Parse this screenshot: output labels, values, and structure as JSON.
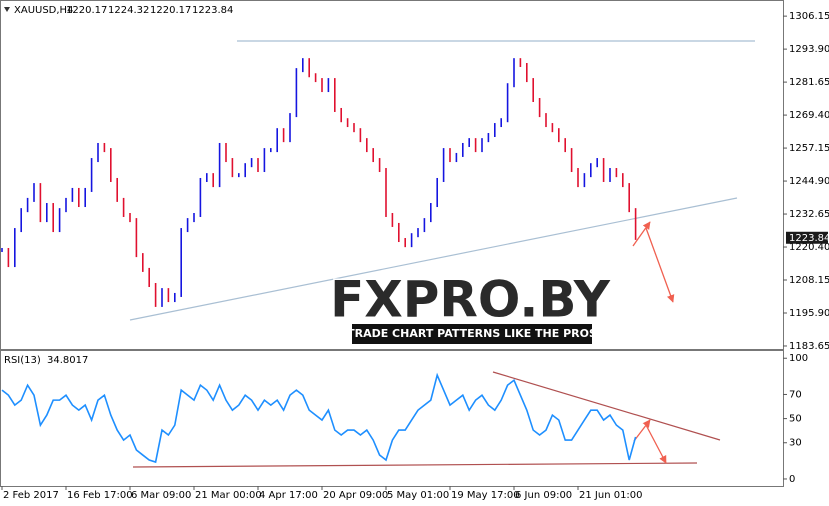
{
  "chart_data": [
    {
      "type": "line",
      "title": "XAUUSD,H4",
      "ohlc": [
        1220.17,
        1224.32,
        1220.17,
        1223.84
      ],
      "up_color": "#1515e0",
      "down_color": "#e0102f",
      "categories": [
        "2 Feb 2017",
        null,
        null,
        null,
        null,
        null,
        null,
        null,
        null,
        null,
        "16 Feb 17:00",
        null,
        null,
        null,
        null,
        null,
        null,
        null,
        null,
        null,
        "6 Mar 09:00",
        null,
        null,
        null,
        null,
        null,
        null,
        null,
        null,
        null,
        "21 Mar 00:00",
        null,
        null,
        null,
        null,
        null,
        null,
        null,
        null,
        null,
        "4 Apr 17:00",
        null,
        null,
        null,
        null,
        null,
        null,
        null,
        null,
        null,
        "20 Apr 09:00",
        null,
        null,
        null,
        null,
        null,
        null,
        null,
        null,
        null,
        "5 May 01:00",
        null,
        null,
        null,
        null,
        null,
        null,
        null,
        null,
        null,
        "19 May 17:00",
        null,
        null,
        null,
        null,
        null,
        null,
        null,
        null,
        null,
        "6 Jun 09:00",
        null,
        null,
        null,
        null,
        null,
        null,
        null,
        null,
        null,
        "21 Jun 01:00",
        null,
        null,
        null,
        null,
        null,
        null,
        null,
        null,
        null
      ],
      "values": [
        1219.3,
        1213.7,
        1226.7,
        1234.1,
        1237.9,
        1243.4,
        1230.4,
        1236,
        1226.7,
        1234.1,
        1237.9,
        1241.6,
        1236,
        1241.6,
        1252.7,
        1258.3,
        1256.4,
        1245.3,
        1237.9,
        1232.3,
        1230.4,
        1217.4,
        1211.9,
        1206.3,
        1198.9,
        1204.4,
        1200.7,
        1202.6,
        1226.7,
        1230.4,
        1232.3,
        1245.3,
        1247.1,
        1243.4,
        1258.3,
        1252.7,
        1247.1,
        1247.1,
        1250.8,
        1252.7,
        1249,
        1256.4,
        1256.4,
        1263.8,
        1260.1,
        1269.4,
        1286.1,
        1289.8,
        1284.2,
        1282.4,
        1278.7,
        1282.4,
        1271.3,
        1267.5,
        1265.7,
        1263.8,
        1260.1,
        1256.4,
        1252.7,
        1249,
        1232.3,
        1228.6,
        1223,
        1221.1,
        1224.8,
        1226.7,
        1230.4,
        1236,
        1245.3,
        1256.4,
        1252.7,
        1254.6,
        1258.3,
        1260.1,
        1256.4,
        1260.1,
        1262,
        1265.7,
        1267.5,
        1280.5,
        1289.8,
        1288,
        1282.4,
        1275,
        1269.4,
        1265.7,
        1263.8,
        1260.1,
        1256.4,
        1249,
        1243.4,
        1247.1,
        1250.8,
        1252.7,
        1245.3,
        1249,
        1247.1,
        1243.4,
        1234.1,
        1223.8
      ],
      "ylim": [
        1182.9,
        1311.4
      ],
      "yticks": [
        1306.15,
        {
          "value": 1293.9,
          "label": "1293.90"
        },
        1281.65,
        {
          "value": 1269.4,
          "label": "1269.40"
        },
        1257.15,
        {
          "value": 1244.9,
          "label": "1244.90"
        },
        1232.65,
        {
          "value": 1220.4,
          "label": "1220.40"
        },
        1208.15,
        {
          "value": 1195.9,
          "label": "1195.90"
        },
        1183.65
      ]
    },
    {
      "type": "line",
      "title": "RSI(13)",
      "last_value": 34.8017,
      "color": "#1e8fff",
      "values": [
        73.6,
        69.4,
        61.2,
        65.3,
        77.7,
        69.4,
        44.6,
        52.9,
        65.3,
        65.3,
        69.4,
        61.2,
        57,
        61.2,
        48.8,
        65.3,
        69.4,
        52.9,
        40.5,
        32.2,
        36.4,
        24,
        19.8,
        15.7,
        14,
        40.5,
        36.4,
        44.6,
        73.6,
        69.4,
        65.3,
        77.7,
        73.6,
        65.3,
        77.7,
        65.3,
        57,
        61.2,
        69.4,
        65.3,
        57,
        65.3,
        61.2,
        65.3,
        57,
        69.4,
        73.6,
        69.4,
        57,
        52.9,
        48.8,
        57,
        40.5,
        36.4,
        40.5,
        40.5,
        36.4,
        40.5,
        32.2,
        19.8,
        15.7,
        32.2,
        40.5,
        40.5,
        48.8,
        57,
        61.2,
        65.3,
        86,
        73.6,
        61.2,
        65.3,
        69.4,
        57,
        65.3,
        69.4,
        61.2,
        57,
        65.3,
        77.7,
        81.8,
        69.4,
        57,
        40.5,
        36.4,
        40.5,
        52.9,
        48.8,
        32.2,
        32.2,
        40.5,
        48.8,
        57,
        57,
        48.8,
        52.9,
        44.6,
        40.5,
        15.7,
        34.8
      ],
      "ylim": [
        -5,
        106
      ],
      "yticks": [
        100,
        70,
        50,
        30,
        0
      ]
    }
  ],
  "logo": {
    "brand": "FXPRO.BY",
    "tagline": "TRADE CHART PATTERNS LIKE THE PROS"
  }
}
